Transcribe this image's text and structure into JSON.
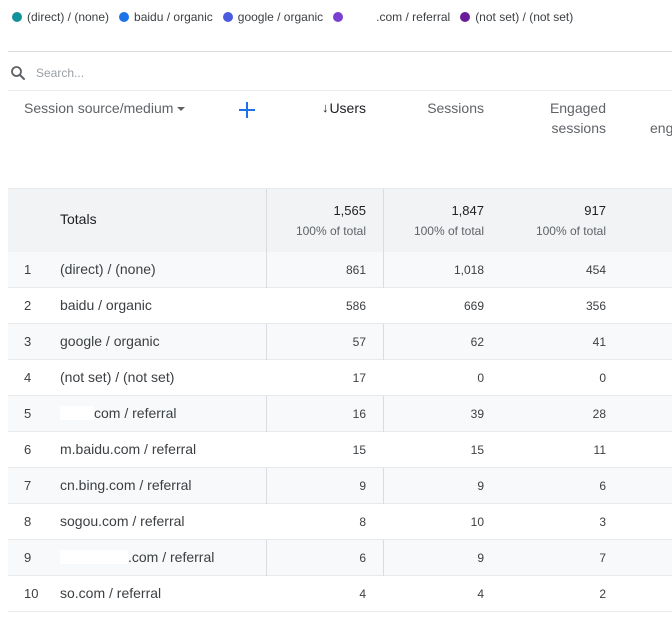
{
  "legend": [
    {
      "label": "(direct) / (none)",
      "color": "#1a73e8",
      "dot_color": "#12939a"
    },
    {
      "label": "baidu / organic",
      "color": "#1a73e8"
    },
    {
      "label": "google / organic",
      "color": "#4a5be0"
    },
    {
      "label": ".com / referral",
      "color": "#7b3fd1",
      "redacted_prefix": true
    },
    {
      "label": "(not set) / (not set)",
      "color": "#6a1b9a"
    }
  ],
  "search": {
    "placeholder": "Search..."
  },
  "headers": {
    "dimension": "Session source/medium",
    "users": "Users",
    "sessions": "Sessions",
    "engaged_line1": "Engaged",
    "engaged_line2": "sessions",
    "truncated": "eng"
  },
  "totals": {
    "label": "Totals",
    "users": "1,565",
    "sessions": "1,847",
    "engaged": "917",
    "users_sub": "100% of total",
    "sessions_sub": "100% of total",
    "engaged_sub": "100% of total"
  },
  "rows": [
    {
      "idx": "1",
      "dim": "(direct) / (none)",
      "users": "861",
      "sessions": "1,018",
      "engaged": "454"
    },
    {
      "idx": "2",
      "dim": "baidu / organic",
      "users": "586",
      "sessions": "669",
      "engaged": "356"
    },
    {
      "idx": "3",
      "dim": "google / organic",
      "users": "57",
      "sessions": "62",
      "engaged": "41"
    },
    {
      "idx": "4",
      "dim": "(not set) / (not set)",
      "users": "17",
      "sessions": "0",
      "engaged": "0"
    },
    {
      "idx": "5",
      "dim": "com / referral",
      "users": "16",
      "sessions": "39",
      "engaged": "28",
      "redact": "a"
    },
    {
      "idx": "6",
      "dim": "m.baidu.com / referral",
      "users": "15",
      "sessions": "15",
      "engaged": "11"
    },
    {
      "idx": "7",
      "dim": "cn.bing.com / referral",
      "users": "9",
      "sessions": "9",
      "engaged": "6"
    },
    {
      "idx": "8",
      "dim": "sogou.com / referral",
      "users": "8",
      "sessions": "10",
      "engaged": "3"
    },
    {
      "idx": "9",
      "dim": ".com / referral",
      "users": "6",
      "sessions": "9",
      "engaged": "7",
      "redact": "b"
    },
    {
      "idx": "10",
      "dim": "so.com / referral",
      "users": "4",
      "sessions": "4",
      "engaged": "2"
    }
  ]
}
